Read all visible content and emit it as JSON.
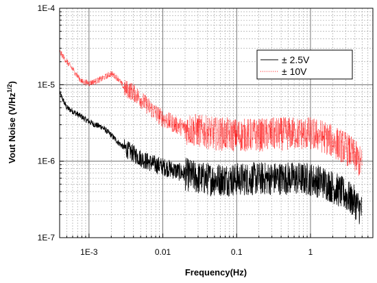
{
  "chart_data": {
    "type": "line",
    "xlabel": "Frequency(Hz)",
    "ylabel_main": "Vout Noise (V/Hz",
    "ylabel_exp": "1/2",
    "ylabel_close": ")",
    "x_scale": "log",
    "y_scale": "log",
    "xlim": [
      0.0004,
      7
    ],
    "ylim": [
      1e-07,
      0.0001
    ],
    "x_ticks": [
      {
        "value": 0.001,
        "label": "1E-3"
      },
      {
        "value": 0.01,
        "label": "0.01"
      },
      {
        "value": 0.1,
        "label": "0.1"
      },
      {
        "value": 1,
        "label": "1"
      }
    ],
    "y_ticks": [
      {
        "value": 1e-07,
        "label": "1E-7"
      },
      {
        "value": 1e-06,
        "label": "1E-6"
      },
      {
        "value": 1e-05,
        "label": "1E-5"
      },
      {
        "value": 0.0001,
        "label": "1E-4"
      }
    ],
    "grid": true,
    "legend_position": "top-right",
    "series": [
      {
        "name": "± 2.5V",
        "color": "#000000",
        "style": "solid",
        "x": [
          0.0004,
          0.0005,
          0.0006,
          0.0007,
          0.0008,
          0.0009,
          0.001,
          0.0012,
          0.0015,
          0.002,
          0.0025,
          0.003,
          0.004,
          0.005,
          0.006,
          0.008,
          0.01,
          0.015,
          0.02,
          0.03,
          0.05,
          0.1,
          0.2,
          0.5,
          1,
          1.5,
          2,
          3,
          4,
          5
        ],
        "y": [
          7.8e-06,
          5e-06,
          4.5e-06,
          4.1e-06,
          3.8e-06,
          3.5e-06,
          3.3e-06,
          3e-06,
          2.8e-06,
          2.2e-06,
          1.75e-06,
          1.5e-06,
          1.25e-06,
          1.1e-06,
          1e-06,
          9e-07,
          8.5e-07,
          7.5e-07,
          6.8e-07,
          6e-07,
          5.8e-07,
          5.8e-07,
          5.9e-07,
          6e-07,
          5.8e-07,
          5.3e-07,
          4.6e-07,
          3.6e-07,
          2.9e-07,
          2.2e-07
        ]
      },
      {
        "name": "± 10V",
        "color": "#ff0000",
        "style": "dotted",
        "x": [
          0.0004,
          0.0005,
          0.0006,
          0.0007,
          0.0008,
          0.001,
          0.0012,
          0.0015,
          0.002,
          0.0025,
          0.003,
          0.004,
          0.005,
          0.006,
          0.008,
          0.01,
          0.015,
          0.02,
          0.03,
          0.05,
          0.1,
          0.2,
          0.5,
          1,
          1.5,
          2,
          3,
          4,
          5
        ],
        "y": [
          2.7e-05,
          2e-05,
          1.6e-05,
          1.3e-05,
          1.1e-05,
          1.05e-05,
          1.1e-05,
          1.2e-05,
          1.4e-05,
          1.2e-05,
          9e-06,
          8e-06,
          6.5e-06,
          5.5e-06,
          4.3e-06,
          3.6e-06,
          3e-06,
          2.7e-06,
          2.5e-06,
          2.3e-06,
          2.2e-06,
          2.2e-06,
          2.3e-06,
          2.3e-06,
          2.1e-06,
          1.8e-06,
          1.5e-06,
          1.15e-06,
          9e-07
        ]
      }
    ]
  }
}
